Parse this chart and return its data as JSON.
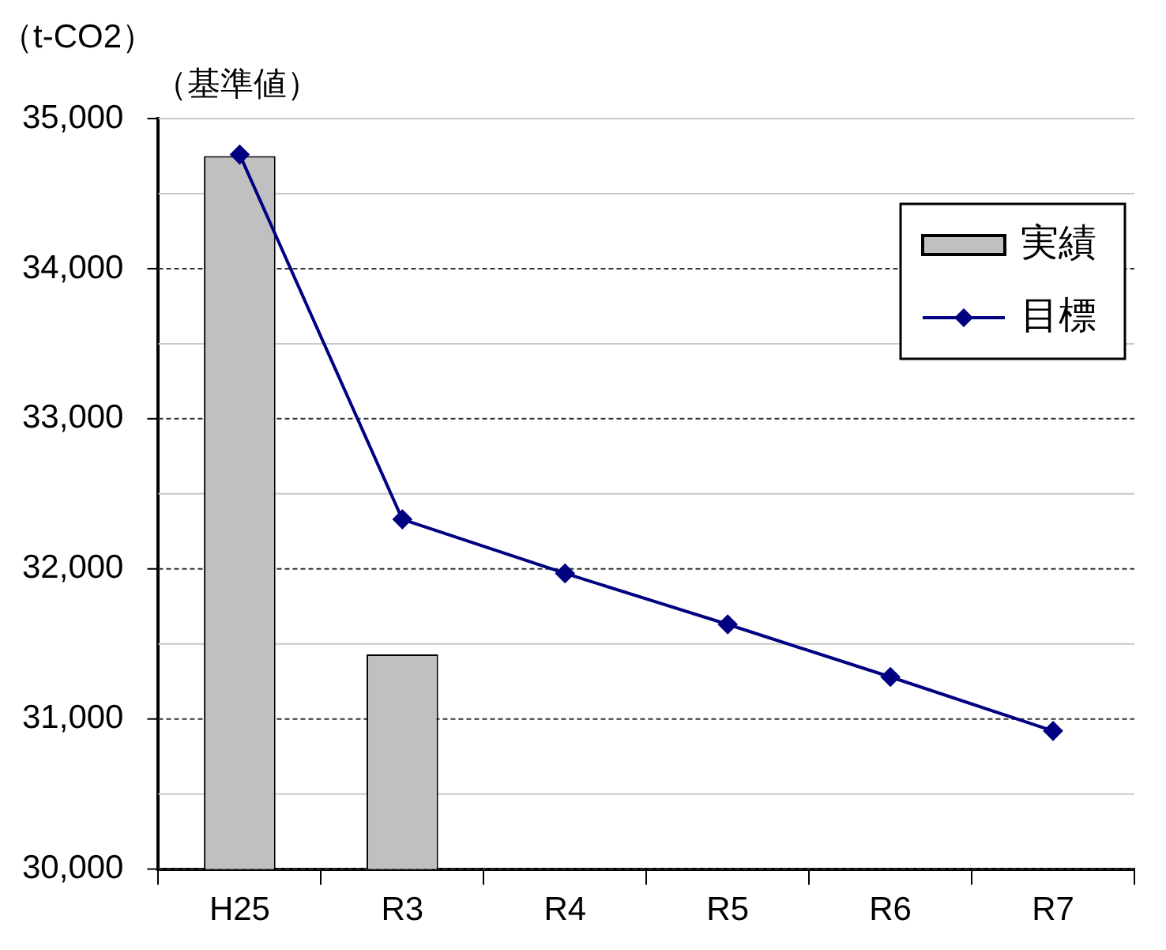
{
  "chart_data": {
    "type": "bar",
    "ylabel": "（t-CO2）",
    "categories": [
      "H25",
      "R3",
      "R4",
      "R5",
      "R6",
      "R7"
    ],
    "series": [
      {
        "name": "実績",
        "color": "#c0c0c0",
        "values": [
          34750,
          31430,
          null,
          null,
          null,
          null
        ]
      },
      {
        "name": "目標",
        "type": "line",
        "color": "#000080",
        "values": [
          34760,
          32330,
          31970,
          31630,
          31280,
          30920
        ]
      }
    ],
    "ylim": [
      30000,
      35000
    ],
    "yticks": [
      {
        "value": 30000,
        "label": "30,000"
      },
      {
        "value": 30500,
        "label": null
      },
      {
        "value": 31000,
        "label": "31,000"
      },
      {
        "value": 31500,
        "label": null
      },
      {
        "value": 32000,
        "label": "32,000"
      },
      {
        "value": 32500,
        "label": null
      },
      {
        "value": 33000,
        "label": "33,000"
      },
      {
        "value": 33500,
        "label": null
      },
      {
        "value": 34000,
        "label": "34,000"
      },
      {
        "value": 34500,
        "label": null
      },
      {
        "value": 35000,
        "label": "35,000"
      }
    ],
    "annotations": [
      "（基準値）"
    ],
    "grid": "y",
    "legend": "top right",
    "marker": "diamond"
  }
}
